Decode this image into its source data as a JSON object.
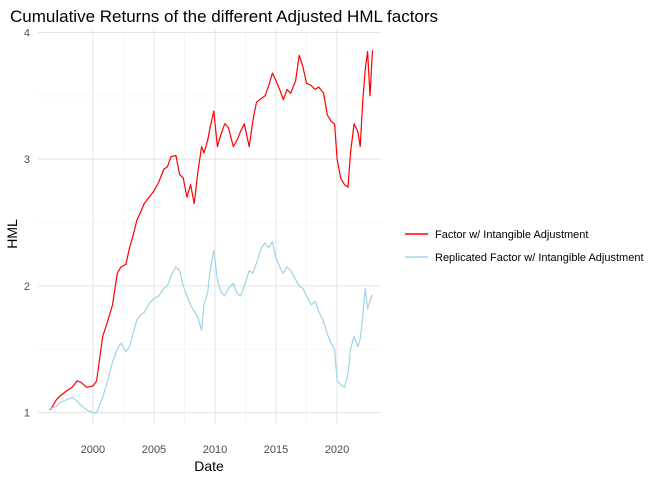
{
  "chart_data": {
    "type": "line",
    "title": "Cumulative Returns of the different Adjusted HML factors",
    "xlabel": "Date",
    "ylabel": "HML",
    "xlim": [
      1995.5,
      2023.6
    ],
    "ylim": [
      0.91,
      4.02
    ],
    "x_ticks": [
      2000,
      2005,
      2010,
      2015,
      2020
    ],
    "x_tick_labels": [
      "2000",
      "2005",
      "2010",
      "2015",
      "2020"
    ],
    "y_ticks": [
      1,
      2,
      3,
      4
    ],
    "y_tick_labels": [
      "1",
      "2",
      "3",
      "4"
    ],
    "grid": true,
    "legend_position": "right",
    "series": [
      {
        "name": "Factor w/ Intangible Adjustment",
        "color": "#ff0000",
        "x": [
          1996.5,
          1997.0,
          1997.3,
          1997.8,
          1998.3,
          1998.7,
          1999.0,
          1999.5,
          2000.0,
          2000.3,
          2000.8,
          2001.2,
          2001.6,
          2002.0,
          2002.3,
          2002.7,
          2003.0,
          2003.3,
          2003.6,
          2003.9,
          2004.2,
          2004.6,
          2005.0,
          2005.4,
          2005.8,
          2006.1,
          2006.4,
          2006.8,
          2007.1,
          2007.4,
          2007.7,
          2008.0,
          2008.3,
          2008.6,
          2008.9,
          2009.1,
          2009.4,
          2009.6,
          2009.9,
          2010.2,
          2010.5,
          2010.8,
          2011.1,
          2011.5,
          2011.8,
          2012.1,
          2012.4,
          2012.8,
          2013.1,
          2013.4,
          2013.8,
          2014.1,
          2014.4,
          2014.7,
          2015.0,
          2015.3,
          2015.6,
          2015.9,
          2016.2,
          2016.6,
          2016.9,
          2017.2,
          2017.5,
          2017.9,
          2018.2,
          2018.5,
          2018.9,
          2019.2,
          2019.5,
          2019.8,
          2020.0,
          2020.3,
          2020.6,
          2020.9,
          2021.1,
          2021.4,
          2021.7,
          2021.9,
          2022.1,
          2022.3,
          2022.5,
          2022.7,
          2022.9
        ],
        "values": [
          1.02,
          1.1,
          1.13,
          1.17,
          1.2,
          1.25,
          1.24,
          1.2,
          1.21,
          1.25,
          1.6,
          1.72,
          1.85,
          2.1,
          2.15,
          2.17,
          2.3,
          2.4,
          2.52,
          2.58,
          2.65,
          2.7,
          2.75,
          2.82,
          2.92,
          2.94,
          3.02,
          3.03,
          2.88,
          2.85,
          2.7,
          2.8,
          2.65,
          2.9,
          3.1,
          3.05,
          3.15,
          3.25,
          3.38,
          3.1,
          3.2,
          3.28,
          3.25,
          3.1,
          3.15,
          3.22,
          3.28,
          3.1,
          3.3,
          3.45,
          3.48,
          3.5,
          3.58,
          3.68,
          3.62,
          3.55,
          3.47,
          3.55,
          3.52,
          3.62,
          3.82,
          3.73,
          3.6,
          3.58,
          3.55,
          3.57,
          3.52,
          3.35,
          3.3,
          3.28,
          3.0,
          2.85,
          2.8,
          2.78,
          3.05,
          3.28,
          3.22,
          3.1,
          3.45,
          3.7,
          3.85,
          3.5,
          3.86
        ]
      },
      {
        "name": "Replicated Factor w/ Intangible Adjustment",
        "color": "#9fd3e8",
        "x": [
          1996.5,
          1997.0,
          1997.3,
          1997.8,
          1998.3,
          1998.7,
          1999.0,
          1999.5,
          2000.0,
          2000.3,
          2000.8,
          2001.2,
          2001.6,
          2002.0,
          2002.3,
          2002.7,
          2003.0,
          2003.3,
          2003.6,
          2003.9,
          2004.2,
          2004.6,
          2005.0,
          2005.4,
          2005.8,
          2006.1,
          2006.4,
          2006.8,
          2007.1,
          2007.4,
          2007.7,
          2008.0,
          2008.3,
          2008.6,
          2008.9,
          2009.1,
          2009.4,
          2009.6,
          2009.9,
          2010.2,
          2010.5,
          2010.8,
          2011.1,
          2011.5,
          2011.8,
          2012.1,
          2012.4,
          2012.8,
          2013.1,
          2013.4,
          2013.8,
          2014.1,
          2014.4,
          2014.7,
          2015.0,
          2015.3,
          2015.6,
          2015.9,
          2016.2,
          2016.6,
          2016.9,
          2017.2,
          2017.5,
          2017.9,
          2018.2,
          2018.5,
          2018.9,
          2019.2,
          2019.5,
          2019.8,
          2020.0,
          2020.3,
          2020.6,
          2020.9,
          2021.1,
          2021.4,
          2021.7,
          2021.9,
          2022.1,
          2022.3,
          2022.5,
          2022.7,
          2022.9
        ],
        "values": [
          1.03,
          1.05,
          1.08,
          1.1,
          1.12,
          1.09,
          1.06,
          1.02,
          1.0,
          1.0,
          1.12,
          1.25,
          1.4,
          1.5,
          1.55,
          1.48,
          1.52,
          1.63,
          1.73,
          1.77,
          1.79,
          1.86,
          1.9,
          1.92,
          1.98,
          2.0,
          2.08,
          2.15,
          2.12,
          2.0,
          1.92,
          1.85,
          1.8,
          1.75,
          1.65,
          1.85,
          1.95,
          2.12,
          2.28,
          2.05,
          1.95,
          1.92,
          1.98,
          2.02,
          1.94,
          1.92,
          2.0,
          2.12,
          2.1,
          2.18,
          2.3,
          2.34,
          2.3,
          2.35,
          2.22,
          2.15,
          2.1,
          2.15,
          2.12,
          2.05,
          2.0,
          1.98,
          1.92,
          1.85,
          1.88,
          1.8,
          1.72,
          1.62,
          1.55,
          1.5,
          1.25,
          1.22,
          1.2,
          1.3,
          1.5,
          1.6,
          1.52,
          1.58,
          1.75,
          1.98,
          1.82,
          1.88,
          1.93
        ]
      }
    ]
  }
}
